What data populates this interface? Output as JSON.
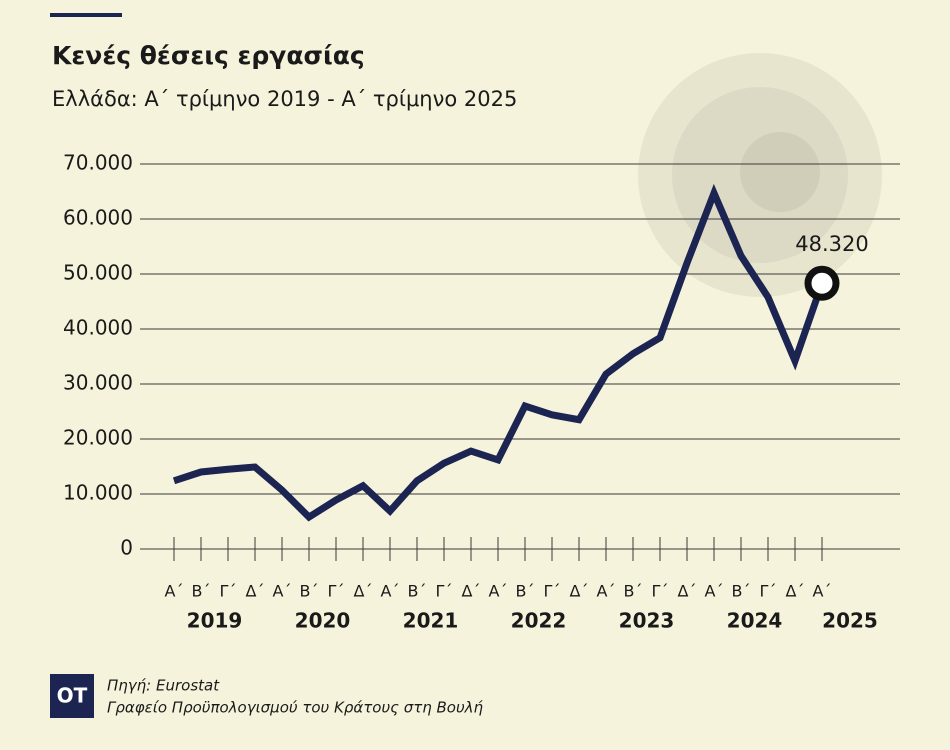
{
  "chart_data": {
    "type": "line",
    "title": "Κενές θέσεις εργασίας",
    "subtitle": "Ελλάδα:  Α΄ τρίμηνο 2019 - Α΄ τρίμηνο 2025",
    "categories": [
      "Α΄",
      "Β΄",
      "Γ΄",
      "Δ΄",
      "Α΄",
      "Β΄",
      "Γ΄",
      "Δ΄",
      "Α΄",
      "Β΄",
      "Γ΄",
      "Δ΄",
      "Α΄",
      "Β΄",
      "Γ΄",
      "Δ΄",
      "Α΄",
      "Β΄",
      "Γ΄",
      "Δ΄",
      "Α΄",
      "Β΄",
      "Γ΄",
      "Δ΄",
      "Α΄"
    ],
    "year_labels": [
      "2019",
      "2020",
      "2021",
      "2022",
      "2023",
      "2024",
      "2025"
    ],
    "values": [
      12400,
      14000,
      14500,
      14900,
      10700,
      5800,
      8900,
      11500,
      6900,
      12400,
      15600,
      17800,
      16200,
      26000,
      24400,
      23500,
      31800,
      35500,
      38400,
      52000,
      64700,
      53300,
      45800,
      34200,
      48320
    ],
    "value_labels": [
      null,
      null,
      null,
      null,
      null,
      null,
      null,
      null,
      null,
      null,
      null,
      null,
      null,
      null,
      null,
      null,
      null,
      null,
      null,
      null,
      null,
      null,
      null,
      null,
      "48.320"
    ],
    "color": "#1c2452",
    "ylim": [
      0,
      70000
    ],
    "yticks": [
      0,
      {
        "value": 10000,
        "label": "10.000"
      },
      {
        "value": 20000,
        "label": "20.000"
      },
      {
        "value": 30000,
        "label": "30.000"
      },
      {
        "value": 40000,
        "label": "40.000"
      },
      {
        "value": 50000,
        "label": "50.000"
      },
      {
        "value": 60000,
        "label": "60.000"
      },
      {
        "value": 70000,
        "label": "70.000"
      }
    ],
    "grid": true,
    "source": [
      "Πηγή: Eurostat",
      "Γραφείο Προϋπολογισμού του Κράτους στη Βουλή"
    ],
    "logo": "OT"
  }
}
